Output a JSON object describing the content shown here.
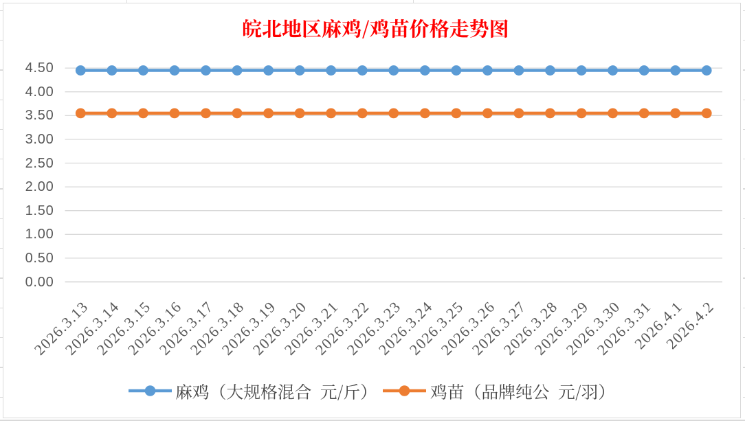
{
  "sheet": {
    "description": "Excel worksheet area with embedded chart",
    "background": "#FFFFFF"
  },
  "chart_data": {
    "type": "line",
    "title": "皖北地区麻鸡/鸡苗价格走势图",
    "title_color": "#FF0000",
    "categories": [
      "2026.3.13",
      "2026.3.14",
      "2026.3.15",
      "2026.3.16",
      "2026.3.17",
      "2026.3.18",
      "2026.3.19",
      "2026.3.20",
      "2026.3.21",
      "2026.3.22",
      "2026.3.23",
      "2026.3.24",
      "2026.3.25",
      "2026.3.26",
      "2026.3.27",
      "2026.3.28",
      "2026.3.29",
      "2026.3.30",
      "2026.3.31",
      "2026.4.1",
      "2026.4.2"
    ],
    "series": [
      {
        "name": "麻鸡（大规格混合 元/斤）",
        "color": "#5B9BD5",
        "values": [
          4.45,
          4.45,
          4.45,
          4.45,
          4.45,
          4.45,
          4.45,
          4.45,
          4.45,
          4.45,
          4.45,
          4.45,
          4.45,
          4.45,
          4.45,
          4.45,
          4.45,
          4.45,
          4.45,
          4.45,
          4.45
        ]
      },
      {
        "name": "鸡苗（品牌纯公 元/羽）",
        "color": "#ED7D31",
        "values": [
          3.55,
          3.55,
          3.55,
          3.55,
          3.55,
          3.55,
          3.55,
          3.55,
          3.55,
          3.55,
          3.55,
          3.55,
          3.55,
          3.55,
          3.55,
          3.55,
          3.55,
          3.55,
          3.55,
          3.55,
          3.55
        ]
      }
    ],
    "xlabel": "",
    "ylabel": "",
    "ylim": [
      0.0,
      4.5
    ],
    "ytick_step": 0.5,
    "ytick_labels": [
      "0.00",
      "0.50",
      "1.00",
      "1.50",
      "2.00",
      "2.50",
      "3.00",
      "3.50",
      "4.00",
      "4.50"
    ],
    "grid": true,
    "gridline_color": "#D9D9D9",
    "axis_text_color": "#595959",
    "legend_position": "bottom",
    "marker": "circle"
  }
}
